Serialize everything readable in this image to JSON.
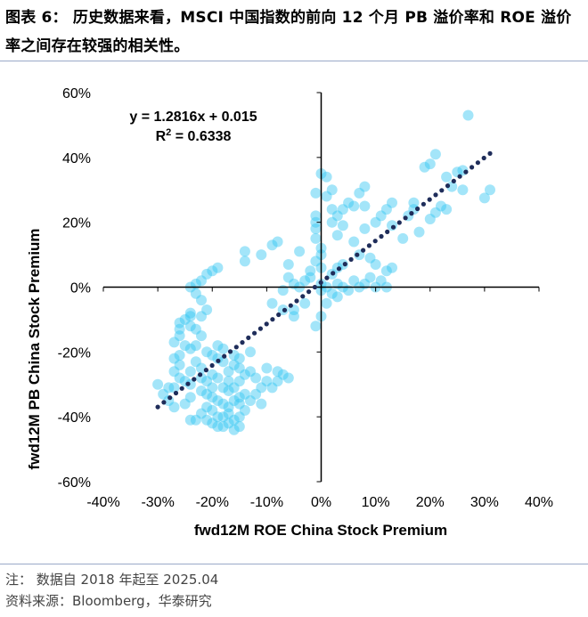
{
  "figure": {
    "title": "图表 6：  历史数据来看，MSCI 中国指数的前向 12 个月 PB 溢价率和 ROE 溢价率之间存在较强的相关性。",
    "note": "注：  数据自 2018 年起至 2025.04",
    "source": "资料来源：Bloomberg，华泰研究"
  },
  "colors": {
    "point": "#33c6f2",
    "trend": "#1f2d5a",
    "rule": "#9aa9c8"
  },
  "chart_data": {
    "type": "scatter",
    "xlabel": "fwd12M ROE China Stock Premium",
    "ylabel": "fwd12M PB China Stock Premium",
    "xlim": [
      -0.4,
      0.4
    ],
    "ylim": [
      -0.6,
      0.6
    ],
    "xticks": [
      "-40%",
      "-30%",
      "-20%",
      "-10%",
      "0%",
      "10%",
      "20%",
      "30%",
      "40%"
    ],
    "yticks": [
      "60%",
      "40%",
      "20%",
      "0%",
      "-20%",
      "-40%",
      "-60%"
    ],
    "grid": false,
    "trendline": {
      "equation": "y = 1.2816x + 0.015",
      "r2_label": "R",
      "r2_sup": "2",
      "r2_value": " = 0.6338",
      "slope": 1.2816,
      "intercept": 0.015,
      "x_range": [
        -0.3,
        0.31
      ]
    },
    "points": [
      [
        0.27,
        0.53
      ],
      [
        0.31,
        0.3
      ],
      [
        0.3,
        0.275
      ],
      [
        0.26,
        0.36
      ],
      [
        0.25,
        0.355
      ],
      [
        0.23,
        0.34
      ],
      [
        0.21,
        0.41
      ],
      [
        0.2,
        0.38
      ],
      [
        0.19,
        0.37
      ],
      [
        0.24,
        0.31
      ],
      [
        0.26,
        0.3
      ],
      [
        0.22,
        0.25
      ],
      [
        0.21,
        0.23
      ],
      [
        0.23,
        0.24
      ],
      [
        0.2,
        0.21
      ],
      [
        0.17,
        0.26
      ],
      [
        0.17,
        0.24
      ],
      [
        0.16,
        0.22
      ],
      [
        0.13,
        0.26
      ],
      [
        0.12,
        0.24
      ],
      [
        0.13,
        0.19
      ],
      [
        0.15,
        0.15
      ],
      [
        0.18,
        0.17
      ],
      [
        0.11,
        0.22
      ],
      [
        0.1,
        0.2
      ],
      [
        0.08,
        0.18
      ],
      [
        0.08,
        0.31
      ],
      [
        0.07,
        0.29
      ],
      [
        0.08,
        0.25
      ],
      [
        0.06,
        0.25
      ],
      [
        0.05,
        0.26
      ],
      [
        0.04,
        0.24
      ],
      [
        0.03,
        0.22
      ],
      [
        0.02,
        0.2
      ],
      [
        0.04,
        0.19
      ],
      [
        0.03,
        0.16
      ],
      [
        0.06,
        0.14
      ],
      [
        0.07,
        0.1
      ],
      [
        0.09,
        0.09
      ],
      [
        0.1,
        0.07
      ],
      [
        0.12,
        0.05
      ],
      [
        0.13,
        0.06
      ],
      [
        0.11,
        0.02
      ],
      [
        0.09,
        0.03
      ],
      [
        0.08,
        0.01
      ],
      [
        0.1,
        0.0
      ],
      [
        0.12,
        0.0
      ],
      [
        0.07,
        0.0
      ],
      [
        0.06,
        0.02
      ],
      [
        0.05,
        -0.01
      ],
      [
        0.04,
        0.0
      ],
      [
        0.03,
        0.01
      ],
      [
        0.03,
        -0.03
      ],
      [
        0.02,
        -0.02
      ],
      [
        0.01,
        0.0
      ],
      [
        0.01,
        -0.05
      ],
      [
        0.0,
        -0.01
      ],
      [
        0.0,
        0.01
      ],
      [
        0.02,
        0.04
      ],
      [
        0.03,
        0.06
      ],
      [
        0.04,
        0.07
      ],
      [
        0.0,
        0.35
      ],
      [
        0.01,
        0.34
      ],
      [
        0.02,
        0.3
      ],
      [
        -0.01,
        0.29
      ],
      [
        0.01,
        0.28
      ],
      [
        0.02,
        0.24
      ],
      [
        -0.01,
        0.22
      ],
      [
        -0.01,
        0.2
      ],
      [
        -0.01,
        0.18
      ],
      [
        -0.01,
        0.15
      ],
      [
        0.0,
        0.12
      ],
      [
        0.0,
        0.1
      ],
      [
        -0.01,
        0.08
      ],
      [
        0.0,
        0.06
      ],
      [
        -0.02,
        0.05
      ],
      [
        -0.02,
        0.03
      ],
      [
        -0.03,
        0.02
      ],
      [
        -0.04,
        0.0
      ],
      [
        -0.05,
        0.01
      ],
      [
        -0.06,
        0.03
      ],
      [
        -0.07,
        -0.01
      ],
      [
        -0.03,
        -0.05
      ],
      [
        0.0,
        -0.09
      ],
      [
        -0.01,
        -0.12
      ],
      [
        -0.06,
        0.07
      ],
      [
        -0.04,
        0.11
      ],
      [
        -0.08,
        0.14
      ],
      [
        -0.09,
        0.13
      ],
      [
        -0.11,
        0.1
      ],
      [
        -0.14,
        0.11
      ],
      [
        -0.14,
        0.08
      ],
      [
        -0.19,
        0.06
      ],
      [
        -0.2,
        0.05
      ],
      [
        -0.21,
        0.04
      ],
      [
        -0.22,
        0.02
      ],
      [
        -0.23,
        0.01
      ],
      [
        -0.24,
        0.0
      ],
      [
        -0.23,
        -0.02
      ],
      [
        -0.22,
        -0.04
      ],
      [
        -0.21,
        -0.07
      ],
      [
        -0.22,
        -0.09
      ],
      [
        -0.24,
        -0.08
      ],
      [
        -0.25,
        -0.1
      ],
      [
        -0.24,
        -0.12
      ],
      [
        -0.26,
        -0.13
      ],
      [
        -0.26,
        -0.15
      ],
      [
        -0.27,
        -0.17
      ],
      [
        -0.25,
        -0.18
      ],
      [
        -0.24,
        -0.19
      ],
      [
        -0.23,
        -0.18
      ],
      [
        -0.26,
        -0.21
      ],
      [
        -0.27,
        -0.22
      ],
      [
        -0.26,
        -0.24
      ],
      [
        -0.27,
        -0.26
      ],
      [
        -0.26,
        -0.28
      ],
      [
        -0.25,
        -0.29
      ],
      [
        -0.24,
        -0.3
      ],
      [
        -0.28,
        -0.31
      ],
      [
        -0.3,
        -0.3
      ],
      [
        -0.29,
        -0.33
      ],
      [
        -0.28,
        -0.35
      ],
      [
        -0.27,
        -0.37
      ],
      [
        -0.25,
        -0.36
      ],
      [
        -0.24,
        -0.34
      ],
      [
        -0.22,
        -0.32
      ],
      [
        -0.21,
        -0.33
      ],
      [
        -0.2,
        -0.34
      ],
      [
        -0.19,
        -0.35
      ],
      [
        -0.18,
        -0.36
      ],
      [
        -0.17,
        -0.37
      ],
      [
        -0.16,
        -0.35
      ],
      [
        -0.15,
        -0.34
      ],
      [
        -0.14,
        -0.33
      ],
      [
        -0.13,
        -0.35
      ],
      [
        -0.14,
        -0.38
      ],
      [
        -0.15,
        -0.4
      ],
      [
        -0.16,
        -0.41
      ],
      [
        -0.17,
        -0.42
      ],
      [
        -0.18,
        -0.43
      ],
      [
        -0.16,
        -0.44
      ],
      [
        -0.15,
        -0.43
      ],
      [
        -0.17,
        -0.39
      ],
      [
        -0.19,
        -0.4
      ],
      [
        -0.2,
        -0.38
      ],
      [
        -0.21,
        -0.37
      ],
      [
        -0.22,
        -0.39
      ],
      [
        -0.23,
        -0.41
      ],
      [
        -0.24,
        -0.41
      ],
      [
        -0.21,
        -0.41
      ],
      [
        -0.2,
        -0.42
      ],
      [
        -0.19,
        -0.43
      ],
      [
        -0.18,
        -0.4
      ],
      [
        -0.18,
        -0.31
      ],
      [
        -0.17,
        -0.29
      ],
      [
        -0.15,
        -0.29
      ],
      [
        -0.14,
        -0.27
      ],
      [
        -0.13,
        -0.26
      ],
      [
        -0.12,
        -0.28
      ],
      [
        -0.15,
        -0.25
      ],
      [
        -0.16,
        -0.24
      ],
      [
        -0.17,
        -0.26
      ],
      [
        -0.18,
        -0.23
      ],
      [
        -0.19,
        -0.22
      ],
      [
        -0.2,
        -0.21
      ],
      [
        -0.21,
        -0.2
      ],
      [
        -0.19,
        -0.18
      ],
      [
        -0.18,
        -0.19
      ],
      [
        -0.16,
        -0.21
      ],
      [
        -0.15,
        -0.22
      ],
      [
        -0.13,
        -0.2
      ],
      [
        -0.22,
        -0.25
      ],
      [
        -0.23,
        -0.23
      ],
      [
        -0.24,
        -0.26
      ],
      [
        -0.22,
        -0.28
      ],
      [
        -0.2,
        -0.27
      ],
      [
        -0.19,
        -0.28
      ],
      [
        -0.21,
        -0.29
      ],
      [
        -0.2,
        -0.31
      ],
      [
        -0.17,
        -0.32
      ],
      [
        -0.16,
        -0.31
      ],
      [
        -0.11,
        -0.36
      ],
      [
        -0.09,
        -0.31
      ],
      [
        -0.08,
        -0.29
      ],
      [
        -0.07,
        -0.27
      ],
      [
        -0.06,
        -0.28
      ],
      [
        -0.08,
        -0.26
      ],
      [
        -0.1,
        -0.29
      ],
      [
        -0.11,
        -0.31
      ],
      [
        -0.05,
        -0.09
      ],
      [
        -0.07,
        -0.07
      ],
      [
        -0.09,
        -0.05
      ],
      [
        -0.05,
        -0.07
      ],
      [
        -0.1,
        -0.25
      ],
      [
        -0.12,
        -0.33
      ],
      [
        -0.15,
        -0.36
      ],
      [
        -0.24,
        -0.09
      ],
      [
        -0.23,
        -0.13
      ],
      [
        -0.22,
        -0.15
      ],
      [
        -0.26,
        -0.11
      ],
      [
        -0.27,
        -0.31
      ]
    ]
  }
}
